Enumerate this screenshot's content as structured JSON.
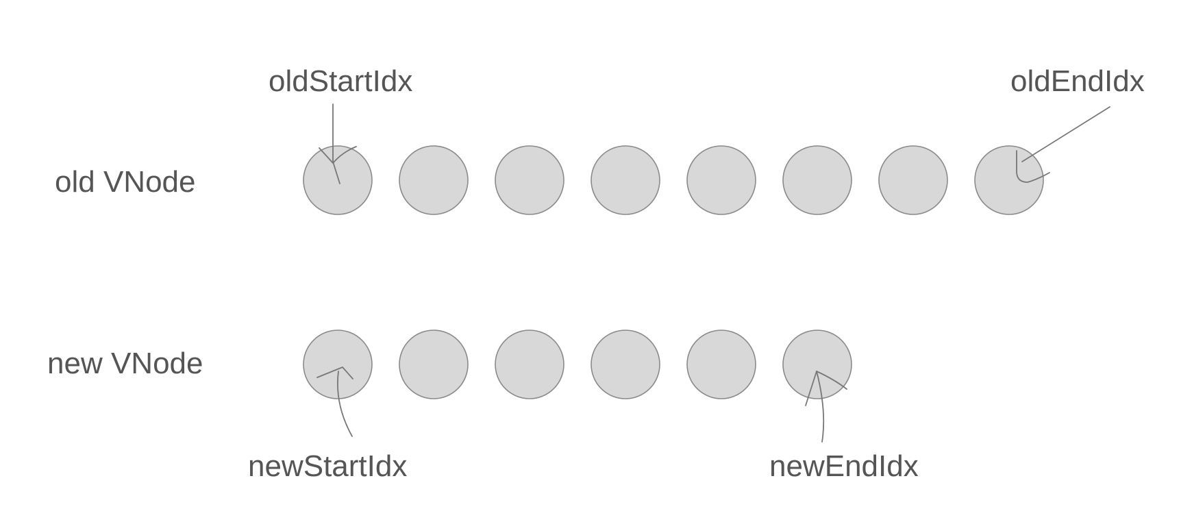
{
  "rows": {
    "old": {
      "label": "old VNode",
      "node_count": 8
    },
    "new": {
      "label": "new VNode",
      "node_count": 6
    }
  },
  "pointers": {
    "old_start": "oldStartIdx",
    "old_end": "oldEndIdx",
    "new_start": "newStartIdx",
    "new_end": "newEndIdx"
  }
}
